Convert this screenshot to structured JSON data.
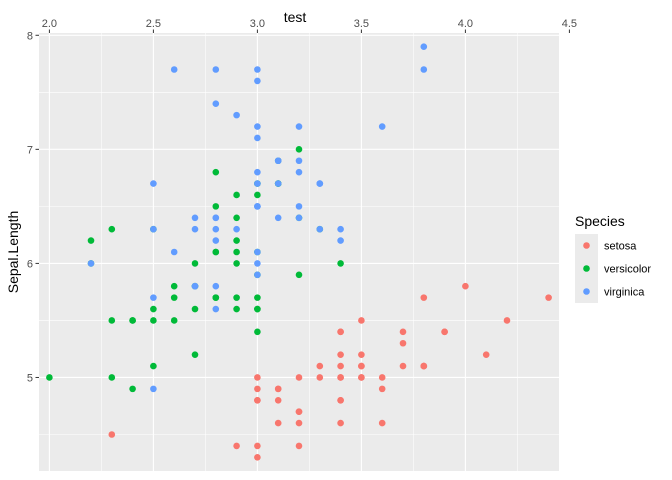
{
  "chart_data": {
    "type": "scatter",
    "title": "",
    "xlabel": "test",
    "x_axis_position": "top",
    "ylabel": "Sepal.Length",
    "xlim": [
      1.95,
      4.45
    ],
    "ylim": [
      4.18,
      8.02
    ],
    "x_ticks": [
      "2.0",
      "2.5",
      "3.0",
      "3.5",
      "4.0",
      "4.5"
    ],
    "y_ticks": [
      "5",
      "6",
      "7",
      "8"
    ],
    "grid": true,
    "legend": {
      "title": "Species",
      "position": "right"
    },
    "series": [
      {
        "name": "setosa",
        "color": "#F8766D",
        "points": [
          [
            3.5,
            5.1
          ],
          [
            3.0,
            4.9
          ],
          [
            3.2,
            4.7
          ],
          [
            3.1,
            4.6
          ],
          [
            3.6,
            5.0
          ],
          [
            3.9,
            5.4
          ],
          [
            3.4,
            4.6
          ],
          [
            3.4,
            5.0
          ],
          [
            2.9,
            4.4
          ],
          [
            3.1,
            4.9
          ],
          [
            3.7,
            5.4
          ],
          [
            3.4,
            4.8
          ],
          [
            3.0,
            4.8
          ],
          [
            3.0,
            4.3
          ],
          [
            4.0,
            5.8
          ],
          [
            4.4,
            5.7
          ],
          [
            3.9,
            5.4
          ],
          [
            3.5,
            5.1
          ],
          [
            3.8,
            5.7
          ],
          [
            3.8,
            5.1
          ],
          [
            3.4,
            5.4
          ],
          [
            3.7,
            5.1
          ],
          [
            3.6,
            4.6
          ],
          [
            3.3,
            5.1
          ],
          [
            3.4,
            4.8
          ],
          [
            3.0,
            5.0
          ],
          [
            3.4,
            5.0
          ],
          [
            3.5,
            5.2
          ],
          [
            3.4,
            5.2
          ],
          [
            3.2,
            4.7
          ],
          [
            3.1,
            4.8
          ],
          [
            3.4,
            5.4
          ],
          [
            4.1,
            5.2
          ],
          [
            4.2,
            5.5
          ],
          [
            3.1,
            4.9
          ],
          [
            3.2,
            5.0
          ],
          [
            3.5,
            5.5
          ],
          [
            3.6,
            4.9
          ],
          [
            3.0,
            4.4
          ],
          [
            3.4,
            5.1
          ],
          [
            3.5,
            5.0
          ],
          [
            2.3,
            4.5
          ],
          [
            3.2,
            4.4
          ],
          [
            3.5,
            5.0
          ],
          [
            3.8,
            5.1
          ],
          [
            3.0,
            4.8
          ],
          [
            3.8,
            5.1
          ],
          [
            3.2,
            4.6
          ],
          [
            3.7,
            5.3
          ],
          [
            3.3,
            5.0
          ]
        ]
      },
      {
        "name": "versicolor",
        "color": "#00BA38",
        "points": [
          [
            3.2,
            7.0
          ],
          [
            3.2,
            6.4
          ],
          [
            3.1,
            6.9
          ],
          [
            2.3,
            5.5
          ],
          [
            2.8,
            6.5
          ],
          [
            2.8,
            5.7
          ],
          [
            3.3,
            6.3
          ],
          [
            2.4,
            4.9
          ],
          [
            2.9,
            6.6
          ],
          [
            2.7,
            5.2
          ],
          [
            2.0,
            5.0
          ],
          [
            3.0,
            5.9
          ],
          [
            2.2,
            6.0
          ],
          [
            2.9,
            6.1
          ],
          [
            2.9,
            5.6
          ],
          [
            3.1,
            6.7
          ],
          [
            3.0,
            5.6
          ],
          [
            2.7,
            5.8
          ],
          [
            2.2,
            6.2
          ],
          [
            2.5,
            5.6
          ],
          [
            3.2,
            5.9
          ],
          [
            2.8,
            6.1
          ],
          [
            2.5,
            6.3
          ],
          [
            2.8,
            6.1
          ],
          [
            2.9,
            6.4
          ],
          [
            3.0,
            6.6
          ],
          [
            2.8,
            6.8
          ],
          [
            3.0,
            6.7
          ],
          [
            2.9,
            6.0
          ],
          [
            2.6,
            5.7
          ],
          [
            2.4,
            5.5
          ],
          [
            2.4,
            5.5
          ],
          [
            2.7,
            5.8
          ],
          [
            2.7,
            6.0
          ],
          [
            3.0,
            5.4
          ],
          [
            3.4,
            6.0
          ],
          [
            3.1,
            6.7
          ],
          [
            2.3,
            6.3
          ],
          [
            3.0,
            5.6
          ],
          [
            2.5,
            5.5
          ],
          [
            2.6,
            5.5
          ],
          [
            3.0,
            6.1
          ],
          [
            2.6,
            5.8
          ],
          [
            2.3,
            5.0
          ],
          [
            2.7,
            5.6
          ],
          [
            3.0,
            5.7
          ],
          [
            2.9,
            5.7
          ],
          [
            2.9,
            6.2
          ],
          [
            2.5,
            5.1
          ],
          [
            2.8,
            5.7
          ]
        ]
      },
      {
        "name": "virginica",
        "color": "#619CFF",
        "points": [
          [
            3.3,
            6.3
          ],
          [
            2.7,
            5.8
          ],
          [
            3.0,
            7.1
          ],
          [
            2.9,
            6.3
          ],
          [
            3.0,
            6.5
          ],
          [
            3.0,
            7.6
          ],
          [
            2.5,
            4.9
          ],
          [
            2.9,
            7.3
          ],
          [
            2.5,
            6.7
          ],
          [
            3.6,
            7.2
          ],
          [
            3.2,
            6.5
          ],
          [
            2.7,
            6.4
          ],
          [
            3.0,
            6.8
          ],
          [
            2.5,
            5.7
          ],
          [
            2.8,
            5.8
          ],
          [
            3.2,
            6.4
          ],
          [
            3.0,
            6.5
          ],
          [
            3.8,
            7.7
          ],
          [
            2.6,
            7.7
          ],
          [
            2.2,
            6.0
          ],
          [
            3.2,
            6.9
          ],
          [
            2.8,
            5.6
          ],
          [
            2.8,
            7.7
          ],
          [
            2.7,
            6.3
          ],
          [
            3.3,
            6.7
          ],
          [
            3.2,
            7.2
          ],
          [
            2.8,
            6.2
          ],
          [
            3.0,
            6.1
          ],
          [
            2.8,
            6.4
          ],
          [
            3.0,
            7.2
          ],
          [
            2.8,
            7.4
          ],
          [
            3.8,
            7.9
          ],
          [
            2.8,
            6.4
          ],
          [
            2.8,
            6.3
          ],
          [
            2.6,
            6.1
          ],
          [
            3.0,
            7.7
          ],
          [
            3.4,
            6.3
          ],
          [
            3.1,
            6.4
          ],
          [
            3.0,
            6.0
          ],
          [
            3.1,
            6.9
          ],
          [
            3.1,
            6.7
          ],
          [
            3.1,
            6.9
          ],
          [
            2.7,
            5.8
          ],
          [
            3.2,
            6.8
          ],
          [
            3.3,
            6.7
          ],
          [
            3.0,
            6.7
          ],
          [
            2.5,
            6.3
          ],
          [
            3.0,
            6.5
          ],
          [
            3.4,
            6.2
          ],
          [
            3.0,
            5.9
          ]
        ]
      }
    ]
  }
}
